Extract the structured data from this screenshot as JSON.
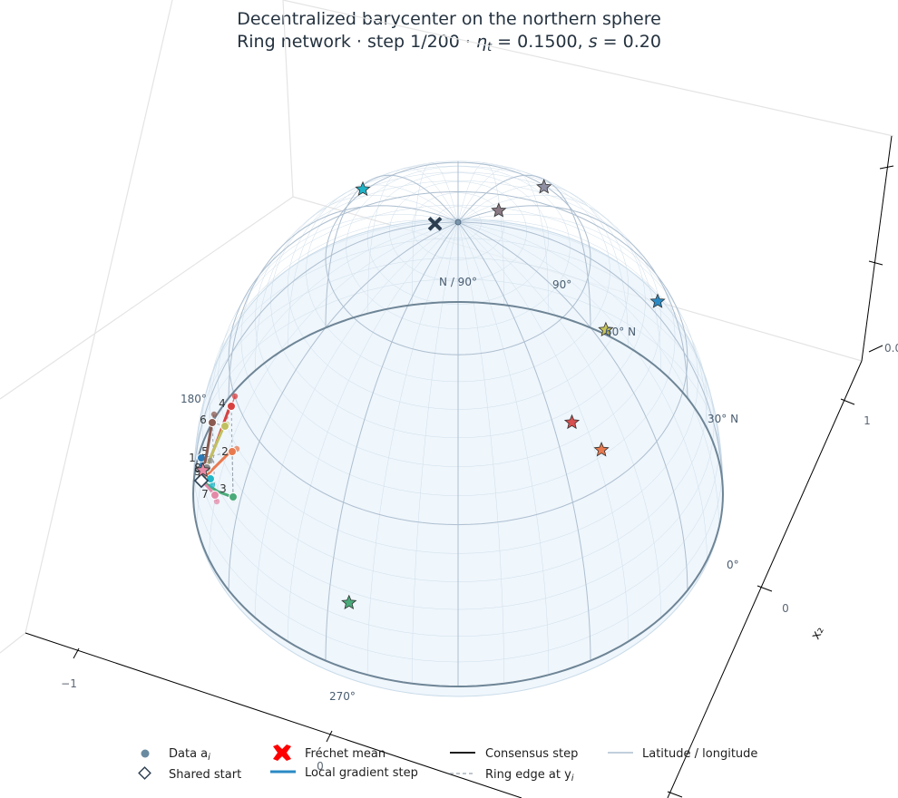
{
  "chart_data": {
    "type": "scatter",
    "title": "Decentralized barycenter on the northern sphere",
    "subtitle_prefix": "Ring network · step 1/200 · ",
    "subtitle_eta_label": "η",
    "subtitle_eta_sub": "t",
    "subtitle_eta_value": " = 0.1500, ",
    "subtitle_s_label": "s",
    "subtitle_s_value": " = 0.20",
    "x_axis": {
      "label": "",
      "ticks": [
        "−1",
        "0"
      ]
    },
    "y_axis": {
      "label": "x₂",
      "ticks": [
        "1",
        "0"
      ]
    },
    "z_axis": {
      "label": "",
      "ticks": [
        "0.0"
      ]
    },
    "sphere_labels": {
      "pole": "N / 90°",
      "lat60": "60° N",
      "lat30": "30° N",
      "lat0": "0°",
      "lon90": "90°",
      "lon180": "180°",
      "lon270": "270°"
    },
    "data_points": [
      {
        "lat": 17,
        "lon": 128,
        "color": "#2a8ac4"
      },
      {
        "lat": 61,
        "lon": 138,
        "color": "#8f8fa3"
      },
      {
        "lat": 80,
        "lon": 118,
        "color": "#8a7a84"
      },
      {
        "lat": 52,
        "lon": 65,
        "color": "#c8c55a"
      },
      {
        "lat": 43,
        "lon": 36,
        "color": "#d84f4f"
      },
      {
        "lat": 36,
        "lon": 42,
        "color": "#e8794f"
      },
      {
        "lat": 13,
        "lon": -25,
        "color": "#4aaa7a"
      },
      {
        "lat": 12,
        "lon": -80,
        "color": "#e88aa4"
      },
      {
        "lat": 40,
        "lon": -152,
        "color": "#1fb3c8"
      }
    ],
    "frechet_mean": {
      "lat": 85,
      "lon": -88
    },
    "agents": [
      {
        "label": "1",
        "color": "#2a7ab8"
      },
      {
        "label": "2",
        "color": "#e8794f"
      },
      {
        "label": "3",
        "color": "#4aaa7a"
      },
      {
        "label": "4",
        "color": "#d84040"
      },
      {
        "label": "5",
        "color": "#c0c060"
      },
      {
        "label": "6",
        "color": "#8b5a50"
      },
      {
        "label": "7",
        "color": "#e48aa8"
      },
      {
        "label": "8",
        "color": "#8a8a8a"
      },
      {
        "label": "9",
        "color": "#20b8c8"
      }
    ],
    "legend": {
      "data": "Data a",
      "data_sub": "i",
      "start": "Shared start",
      "frechet": "Fréchet mean",
      "local": "Local gradient step",
      "consensus": "Consensus step",
      "ring": "Ring edge at y",
      "ring_sub": "i",
      "grid": "Latitude / longitude"
    },
    "colors": {
      "sphere_fill": "#eaf3fb",
      "grid_line": "#aebfd0",
      "equator": "#6e8596",
      "frechet": "#2c3e50",
      "legend_local": "#2a8ac4"
    }
  }
}
